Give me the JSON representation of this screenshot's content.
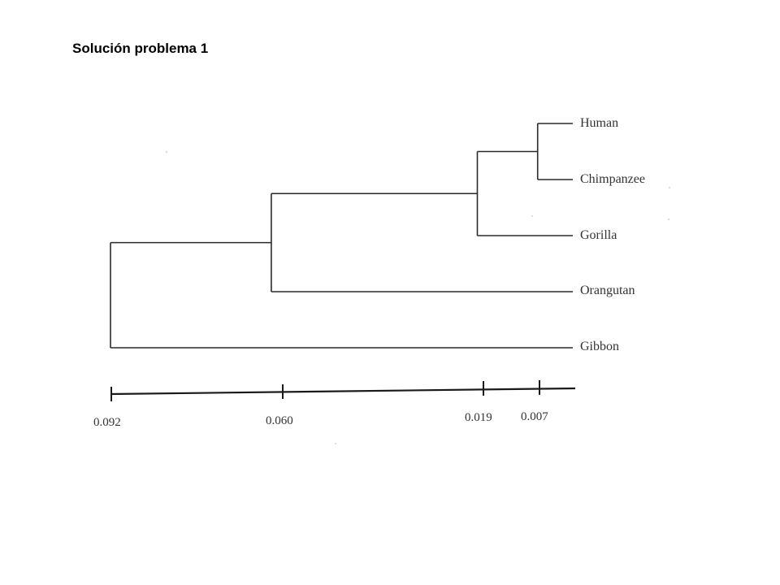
{
  "slide": {
    "title": "Solución problema 1"
  },
  "tree": {
    "line_color": "#2a2a2a",
    "text_color": "#333333",
    "leaves": [
      "Human",
      "Chimpanzee",
      "Gorilla",
      "Orangutan",
      "Gibbon"
    ],
    "clades": [
      {
        "id": "human-chimp",
        "children": [
          "Human",
          "Chimpanzee"
        ],
        "height": 0.007
      },
      {
        "id": "african-apes",
        "children": [
          "human-chimp",
          "Gorilla"
        ],
        "height": 0.019
      },
      {
        "id": "great-apes",
        "children": [
          "african-apes",
          "Orangutan"
        ],
        "height": 0.06
      },
      {
        "id": "root",
        "children": [
          "great-apes",
          "Gibbon"
        ],
        "height": 0.092
      }
    ],
    "scale": {
      "ticks": [
        "0.092",
        "0.060",
        "0.019",
        "0.007"
      ]
    }
  }
}
